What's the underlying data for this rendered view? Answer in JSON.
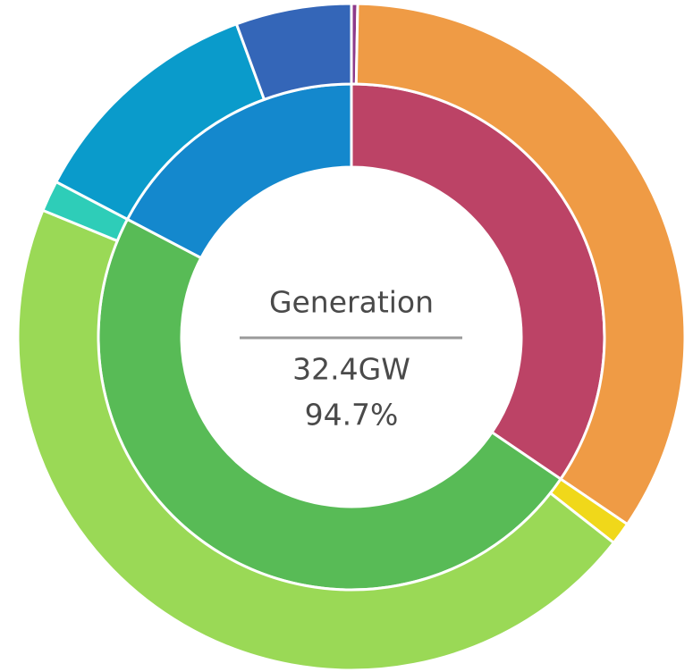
{
  "chart_data": {
    "type": "nested-donut",
    "center": {
      "title": "Generation",
      "value": "32.4GW",
      "share": "94.7%"
    },
    "series": [
      {
        "ring": "inner",
        "values": [
          34.5,
          48.2,
          17.3
        ],
        "colors": [
          "#bc4366",
          "#58bb56",
          "#1488cd"
        ]
      },
      {
        "ring": "outer",
        "values": [
          0.3,
          34.2,
          1.1,
          45.6,
          1.5,
          11.7,
          5.6
        ],
        "colors": [
          "#8e3a8a",
          "#ef9b45",
          "#f0d81a",
          "#9ad956",
          "#2ecdb8",
          "#0a9bcb",
          "#3466b8"
        ]
      }
    ]
  }
}
